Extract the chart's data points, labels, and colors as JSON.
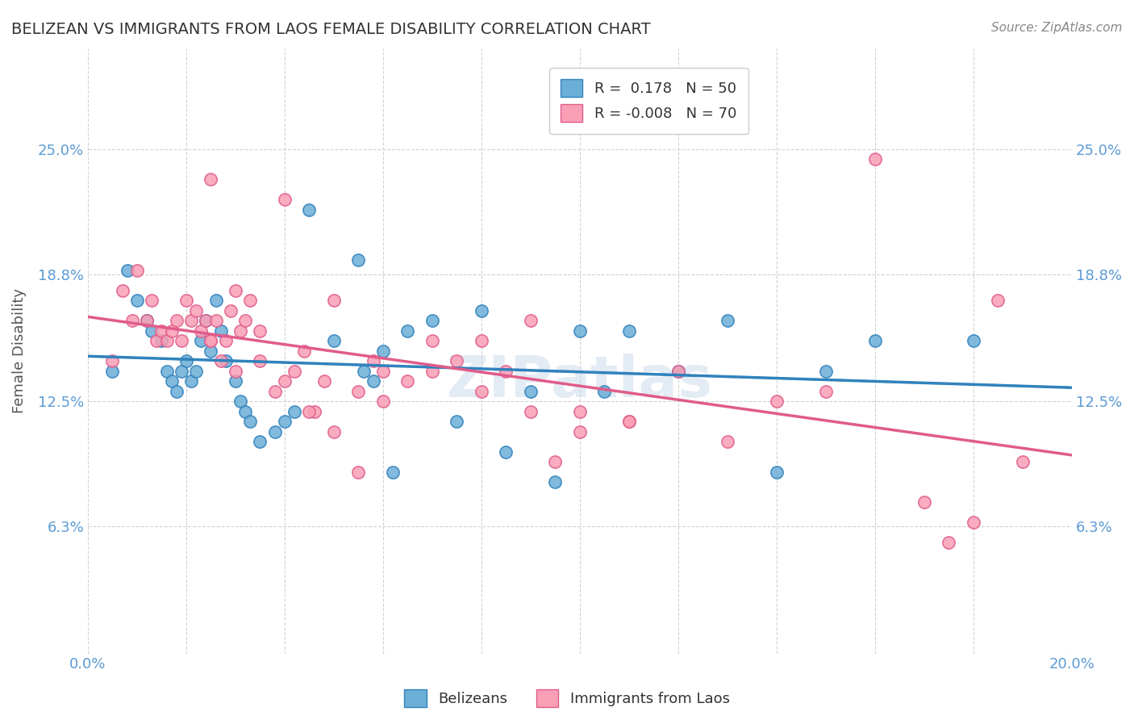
{
  "title": "BELIZEAN VS IMMIGRANTS FROM LAOS FEMALE DISABILITY CORRELATION CHART",
  "source": "Source: ZipAtlas.com",
  "xlabel": "",
  "ylabel": "Female Disability",
  "legend_label1": "Belizeans",
  "legend_label2": "Immigrants from Laos",
  "r1": 0.178,
  "n1": 50,
  "r2": -0.008,
  "n2": 70,
  "xlim": [
    0.0,
    0.2
  ],
  "ylim": [
    0.0,
    0.3
  ],
  "yticks": [
    0.0,
    0.063,
    0.125,
    0.188,
    0.25
  ],
  "ytick_labels": [
    "",
    "6.3%",
    "12.5%",
    "18.8%",
    "25.0%"
  ],
  "xtick_labels": [
    "0.0%",
    "",
    "",
    "",
    "",
    "",
    "",
    "",
    "",
    "",
    "20.0%"
  ],
  "color_blue": "#6baed6",
  "color_pink": "#fa9fb5",
  "trend_blue": "#3182bd",
  "trend_pink": "#e05c8a",
  "background": "#ffffff",
  "title_color": "#333333",
  "source_color": "#888888",
  "blue_scatter_x": [
    0.005,
    0.008,
    0.01,
    0.012,
    0.013,
    0.015,
    0.016,
    0.017,
    0.018,
    0.019,
    0.02,
    0.021,
    0.022,
    0.023,
    0.024,
    0.025,
    0.026,
    0.027,
    0.028,
    0.03,
    0.031,
    0.032,
    0.033,
    0.035,
    0.038,
    0.04,
    0.042,
    0.045,
    0.05,
    0.055,
    0.056,
    0.058,
    0.06,
    0.062,
    0.065,
    0.07,
    0.075,
    0.08,
    0.085,
    0.09,
    0.095,
    0.1,
    0.105,
    0.11,
    0.12,
    0.13,
    0.14,
    0.15,
    0.16,
    0.18
  ],
  "blue_scatter_y": [
    0.14,
    0.19,
    0.175,
    0.165,
    0.16,
    0.155,
    0.14,
    0.135,
    0.13,
    0.14,
    0.145,
    0.135,
    0.14,
    0.155,
    0.165,
    0.15,
    0.175,
    0.16,
    0.145,
    0.135,
    0.125,
    0.12,
    0.115,
    0.105,
    0.11,
    0.115,
    0.12,
    0.22,
    0.155,
    0.195,
    0.14,
    0.135,
    0.15,
    0.09,
    0.16,
    0.165,
    0.115,
    0.17,
    0.1,
    0.13,
    0.085,
    0.16,
    0.13,
    0.16,
    0.14,
    0.165,
    0.09,
    0.14,
    0.155,
    0.155
  ],
  "pink_scatter_x": [
    0.005,
    0.007,
    0.009,
    0.01,
    0.012,
    0.013,
    0.014,
    0.015,
    0.016,
    0.017,
    0.018,
    0.019,
    0.02,
    0.021,
    0.022,
    0.023,
    0.024,
    0.025,
    0.026,
    0.027,
    0.028,
    0.029,
    0.03,
    0.031,
    0.032,
    0.033,
    0.035,
    0.038,
    0.04,
    0.042,
    0.044,
    0.046,
    0.048,
    0.05,
    0.055,
    0.058,
    0.06,
    0.065,
    0.07,
    0.075,
    0.08,
    0.085,
    0.09,
    0.095,
    0.1,
    0.11,
    0.12,
    0.13,
    0.14,
    0.15,
    0.16,
    0.17,
    0.175,
    0.18,
    0.185,
    0.19,
    0.025,
    0.03,
    0.04,
    0.05,
    0.06,
    0.07,
    0.08,
    0.09,
    0.1,
    0.11,
    0.025,
    0.035,
    0.045,
    0.055
  ],
  "pink_scatter_y": [
    0.145,
    0.18,
    0.165,
    0.19,
    0.165,
    0.175,
    0.155,
    0.16,
    0.155,
    0.16,
    0.165,
    0.155,
    0.175,
    0.165,
    0.17,
    0.16,
    0.165,
    0.155,
    0.165,
    0.145,
    0.155,
    0.17,
    0.14,
    0.16,
    0.165,
    0.175,
    0.16,
    0.13,
    0.135,
    0.14,
    0.15,
    0.12,
    0.135,
    0.11,
    0.13,
    0.145,
    0.14,
    0.135,
    0.14,
    0.145,
    0.155,
    0.14,
    0.165,
    0.095,
    0.11,
    0.115,
    0.14,
    0.105,
    0.125,
    0.13,
    0.245,
    0.075,
    0.055,
    0.065,
    0.175,
    0.095,
    0.235,
    0.18,
    0.225,
    0.175,
    0.125,
    0.155,
    0.13,
    0.12,
    0.12,
    0.115,
    0.155,
    0.145,
    0.12,
    0.09
  ]
}
